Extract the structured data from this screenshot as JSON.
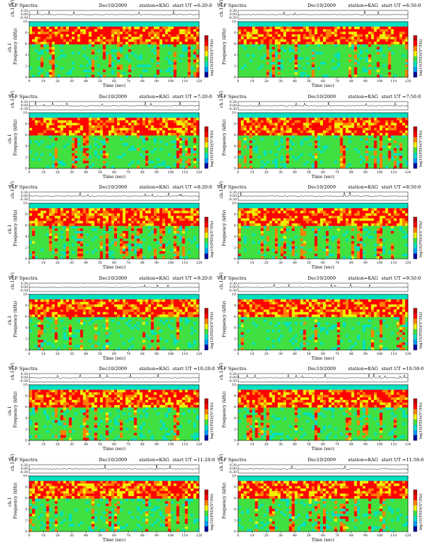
{
  "chart_data": [
    {
      "type": "heatmap",
      "title": "VLF Spectra",
      "date": "Dec10/2009",
      "station": "station=KAG",
      "start": "start  UT =6:20:0",
      "ch_label": "ch.1 (V)",
      "ch_ticks": [
        "0.30",
        "0.00",
        "-0.30"
      ],
      "ylabel": "Frequency (kHz)",
      "ylabel2": "ch.1",
      "xlabel": "Time (sec)",
      "xlim": [
        0,
        120
      ],
      "ylim": [
        0,
        10
      ],
      "xticks": [
        0,
        10,
        20,
        30,
        40,
        50,
        60,
        70,
        80,
        90,
        100,
        110,
        120
      ],
      "yticks": [
        0,
        2,
        4,
        6,
        8,
        10
      ],
      "colorbar_label": "log10(PSD)(V²/Hz)",
      "colorbar_colors": [
        "#0000a0",
        "#00a0ff",
        "#00e0c0",
        "#40e040",
        "#f0f000",
        "#ff8000",
        "#ff0000",
        "#c00000"
      ]
    },
    {
      "type": "heatmap",
      "title": "VLF Spectra",
      "date": "Dec10/2009",
      "station": "station=KAG",
      "start": "start  UT =6:50:0",
      "ch_label": "ch.1 (V)",
      "ch_ticks": [
        "0.30",
        "0.00",
        "-0.30"
      ],
      "ylabel": "Frequency (kHz)",
      "ylabel2": "",
      "xlabel": "Time (sec)",
      "xlim": [
        0,
        120
      ],
      "ylim": [
        0,
        10
      ],
      "xticks": [
        0,
        10,
        20,
        30,
        40,
        50,
        60,
        70,
        80,
        90,
        100,
        110,
        120
      ],
      "yticks": [
        0,
        2,
        4,
        6,
        8,
        10
      ],
      "colorbar_label": "log10(PSD)(V²/Hz)",
      "colorbar_colors": [
        "#0000a0",
        "#00a0ff",
        "#00e0c0",
        "#40e040",
        "#f0f000",
        "#ff8000",
        "#ff0000",
        "#c00000"
      ]
    },
    {
      "type": "heatmap",
      "title": "VLF Spectra",
      "date": "Dec10/2009",
      "station": "station=KAG",
      "start": "start  UT =7:20:0",
      "ch_label": "ch.1 (V)",
      "ch_ticks": [
        "0.30",
        "0.00",
        "-0.30"
      ],
      "ylabel": "Frequency (kHz)",
      "ylabel2": "ch.1",
      "xlabel": "Time (sec)",
      "xlim": [
        0,
        120
      ],
      "ylim": [
        0,
        10
      ],
      "xticks": [
        0,
        10,
        20,
        30,
        40,
        50,
        60,
        70,
        80,
        90,
        100,
        110,
        120
      ],
      "yticks": [
        0,
        2,
        4,
        6,
        8,
        10
      ],
      "colorbar_label": "log10(PSD)(V²/Hz)",
      "colorbar_colors": [
        "#0000a0",
        "#00a0ff",
        "#00e0c0",
        "#40e040",
        "#f0f000",
        "#ff8000",
        "#ff0000",
        "#c00000"
      ]
    },
    {
      "type": "heatmap",
      "title": "VLF Spectra",
      "date": "Dec10/2009",
      "station": "station=KAG",
      "start": "start  UT =7:50:0",
      "ch_label": "ch.1 (V)",
      "ch_ticks": [
        "0.30",
        "0.00",
        "-0.30"
      ],
      "ylabel": "Frequency (kHz)",
      "ylabel2": "",
      "xlabel": "Time (sec)",
      "xlim": [
        0,
        120
      ],
      "ylim": [
        0,
        10
      ],
      "xticks": [
        0,
        10,
        20,
        30,
        40,
        50,
        60,
        70,
        80,
        90,
        100,
        110,
        120
      ],
      "yticks": [
        0,
        2,
        4,
        6,
        8,
        10
      ],
      "colorbar_label": "log10(PSD)(V²/Hz)",
      "colorbar_colors": [
        "#0000a0",
        "#00a0ff",
        "#00e0c0",
        "#40e040",
        "#f0f000",
        "#ff8000",
        "#ff0000",
        "#c00000"
      ]
    },
    {
      "type": "heatmap",
      "title": "VLF Spectra",
      "date": "Dec10/2009",
      "station": "station=KAG",
      "start": "start  UT =8:20:0",
      "ch_label": "ch.1 (V)",
      "ch_ticks": [
        "0.30",
        "0.00",
        "-0.30"
      ],
      "ylabel": "Frequency (kHz)",
      "ylabel2": "ch.1",
      "xlabel": "Time (sec)",
      "xlim": [
        0,
        120
      ],
      "ylim": [
        0,
        10
      ],
      "xticks": [
        0,
        10,
        20,
        30,
        40,
        50,
        60,
        70,
        80,
        90,
        100,
        110,
        120
      ],
      "yticks": [
        0,
        2,
        4,
        6,
        8,
        10
      ],
      "colorbar_label": "log10(PSD)(V²/Hz)",
      "colorbar_colors": [
        "#0000a0",
        "#00a0ff",
        "#00e0c0",
        "#40e040",
        "#f0f000",
        "#ff8000",
        "#ff0000",
        "#c00000"
      ]
    },
    {
      "type": "heatmap",
      "title": "VLF Spectra",
      "date": "Dec10/2009",
      "station": "station=KAG",
      "start": "start  UT =8:50:0",
      "ch_label": "ch.1 (V)",
      "ch_ticks": [
        "0.30",
        "0.00",
        "-0.30"
      ],
      "ylabel": "Frequency (kHz)",
      "ylabel2": "",
      "xlabel": "Time (sec)",
      "xlim": [
        0,
        120
      ],
      "ylim": [
        0,
        10
      ],
      "xticks": [
        0,
        10,
        20,
        30,
        40,
        50,
        60,
        70,
        80,
        90,
        100,
        110,
        120
      ],
      "yticks": [
        0,
        2,
        4,
        6,
        8,
        10
      ],
      "colorbar_label": "log10(PSD)(V²/Hz)",
      "colorbar_colors": [
        "#0000a0",
        "#00a0ff",
        "#00e0c0",
        "#40e040",
        "#f0f000",
        "#ff8000",
        "#ff0000",
        "#c00000"
      ]
    },
    {
      "type": "heatmap",
      "title": "VLF Spectra",
      "date": "Dec10/2009",
      "station": "station=KAG",
      "start": "start  UT =9:20:0",
      "ch_label": "ch.1 (V)",
      "ch_ticks": [
        "0.30",
        "0.00",
        "-0.30"
      ],
      "ylabel": "Frequency (kHz)",
      "ylabel2": "ch.1",
      "xlabel": "Time (sec)",
      "xlim": [
        0,
        120
      ],
      "ylim": [
        0,
        10
      ],
      "xticks": [
        0,
        10,
        20,
        30,
        40,
        50,
        60,
        70,
        80,
        90,
        100,
        110,
        120
      ],
      "yticks": [
        0,
        2,
        4,
        6,
        8,
        10
      ],
      "colorbar_label": "log10(PSD)(V²/Hz)",
      "colorbar_colors": [
        "#0000a0",
        "#00a0ff",
        "#00e0c0",
        "#40e040",
        "#f0f000",
        "#ff8000",
        "#ff0000",
        "#c00000"
      ]
    },
    {
      "type": "heatmap",
      "title": "VLF Spectra",
      "date": "Dec10/2009",
      "station": "station=KAG",
      "start": "start  UT =9:50:0",
      "ch_label": "ch.1 (V)",
      "ch_ticks": [
        "0.30",
        "0.00",
        "-0.30"
      ],
      "ylabel": "Frequency (kHz)",
      "ylabel2": "",
      "xlabel": "Time (sec)",
      "xlim": [
        0,
        120
      ],
      "ylim": [
        0,
        10
      ],
      "xticks": [
        0,
        10,
        20,
        30,
        40,
        50,
        60,
        70,
        80,
        90,
        100,
        110,
        120
      ],
      "yticks": [
        0,
        2,
        4,
        6,
        8,
        10
      ],
      "colorbar_label": "log10(PSD)(V²/Hz)",
      "colorbar_colors": [
        "#0000a0",
        "#00a0ff",
        "#00e0c0",
        "#40e040",
        "#f0f000",
        "#ff8000",
        "#ff0000",
        "#c00000"
      ]
    },
    {
      "type": "heatmap",
      "title": "VLF Spectra",
      "date": "Dec10/2009",
      "station": "station=KAG",
      "start": "start  UT =10:20:0",
      "ch_label": "ch.1 (V)",
      "ch_ticks": [
        "0.30",
        "0.00",
        "-0.30"
      ],
      "ylabel": "Frequency (kHz)",
      "ylabel2": "ch.1",
      "xlabel": "Time (sec)",
      "xlim": [
        0,
        120
      ],
      "ylim": [
        0,
        10
      ],
      "xticks": [
        0,
        10,
        20,
        30,
        40,
        50,
        60,
        70,
        80,
        90,
        100,
        110,
        120
      ],
      "yticks": [
        0,
        2,
        4,
        6,
        8,
        10
      ],
      "colorbar_label": "log10(PSD)(V²/Hz)",
      "colorbar_colors": [
        "#0000a0",
        "#00a0ff",
        "#00e0c0",
        "#40e040",
        "#f0f000",
        "#ff8000",
        "#ff0000",
        "#c00000"
      ]
    },
    {
      "type": "heatmap",
      "title": "VLF Spectra",
      "date": "Dec10/2009",
      "station": "station=KAG",
      "start": "start  UT =10:50:0",
      "ch_label": "ch.1 (V)",
      "ch_ticks": [
        "0.30",
        "0.00",
        "-0.30"
      ],
      "ylabel": "Frequency (kHz)",
      "ylabel2": "",
      "xlabel": "Time (sec)",
      "xlim": [
        0,
        120
      ],
      "ylim": [
        0,
        10
      ],
      "xticks": [
        0,
        10,
        20,
        30,
        40,
        50,
        60,
        70,
        80,
        90,
        100,
        110,
        120
      ],
      "yticks": [
        0,
        2,
        4,
        6,
        8,
        10
      ],
      "colorbar_label": "log10(PSD)(V²/Hz)",
      "colorbar_colors": [
        "#0000a0",
        "#00a0ff",
        "#00e0c0",
        "#40e040",
        "#f0f000",
        "#ff8000",
        "#ff0000",
        "#c00000"
      ]
    },
    {
      "type": "heatmap",
      "title": "VLF Spectra",
      "date": "Dec10/2009",
      "station": "station=KAG",
      "start": "start  UT =11:20:0",
      "ch_label": "ch.1 (V)",
      "ch_ticks": [
        "0.30",
        "0.00",
        "-0.30"
      ],
      "ylabel": "Frequency (kHz)",
      "ylabel2": "ch.1",
      "xlabel": "Time (sec)",
      "xlim": [
        0,
        120
      ],
      "ylim": [
        0,
        10
      ],
      "xticks": [
        0,
        10,
        20,
        30,
        40,
        50,
        60,
        70,
        80,
        90,
        100,
        110,
        120
      ],
      "yticks": [
        0,
        2,
        4,
        6,
        8,
        10
      ],
      "colorbar_label": "log10(PSD)(V²/Hz)",
      "colorbar_colors": [
        "#0000a0",
        "#00a0ff",
        "#00e0c0",
        "#40e040",
        "#f0f000",
        "#ff8000",
        "#ff0000",
        "#c00000"
      ]
    },
    {
      "type": "heatmap",
      "title": "VLF Spectra",
      "date": "Dec10/2009",
      "station": "station=KAG",
      "start": "start  UT =11:50:0",
      "ch_label": "ch.1 (V)",
      "ch_ticks": [
        "0.30",
        "0.00",
        "-0.30"
      ],
      "ylabel": "Frequency (kHz)",
      "ylabel2": "",
      "xlabel": "Time (sec)",
      "xlim": [
        0,
        120
      ],
      "ylim": [
        0,
        10
      ],
      "xticks": [
        0,
        10,
        20,
        30,
        40,
        50,
        60,
        70,
        80,
        90,
        100,
        110,
        120
      ],
      "yticks": [
        0,
        2,
        4,
        6,
        8,
        10
      ],
      "colorbar_label": "log10(PSD)(V²/Hz)",
      "colorbar_colors": [
        "#0000a0",
        "#00a0ff",
        "#00e0c0",
        "#40e040",
        "#f0f000",
        "#ff8000",
        "#ff0000",
        "#c00000"
      ]
    }
  ]
}
